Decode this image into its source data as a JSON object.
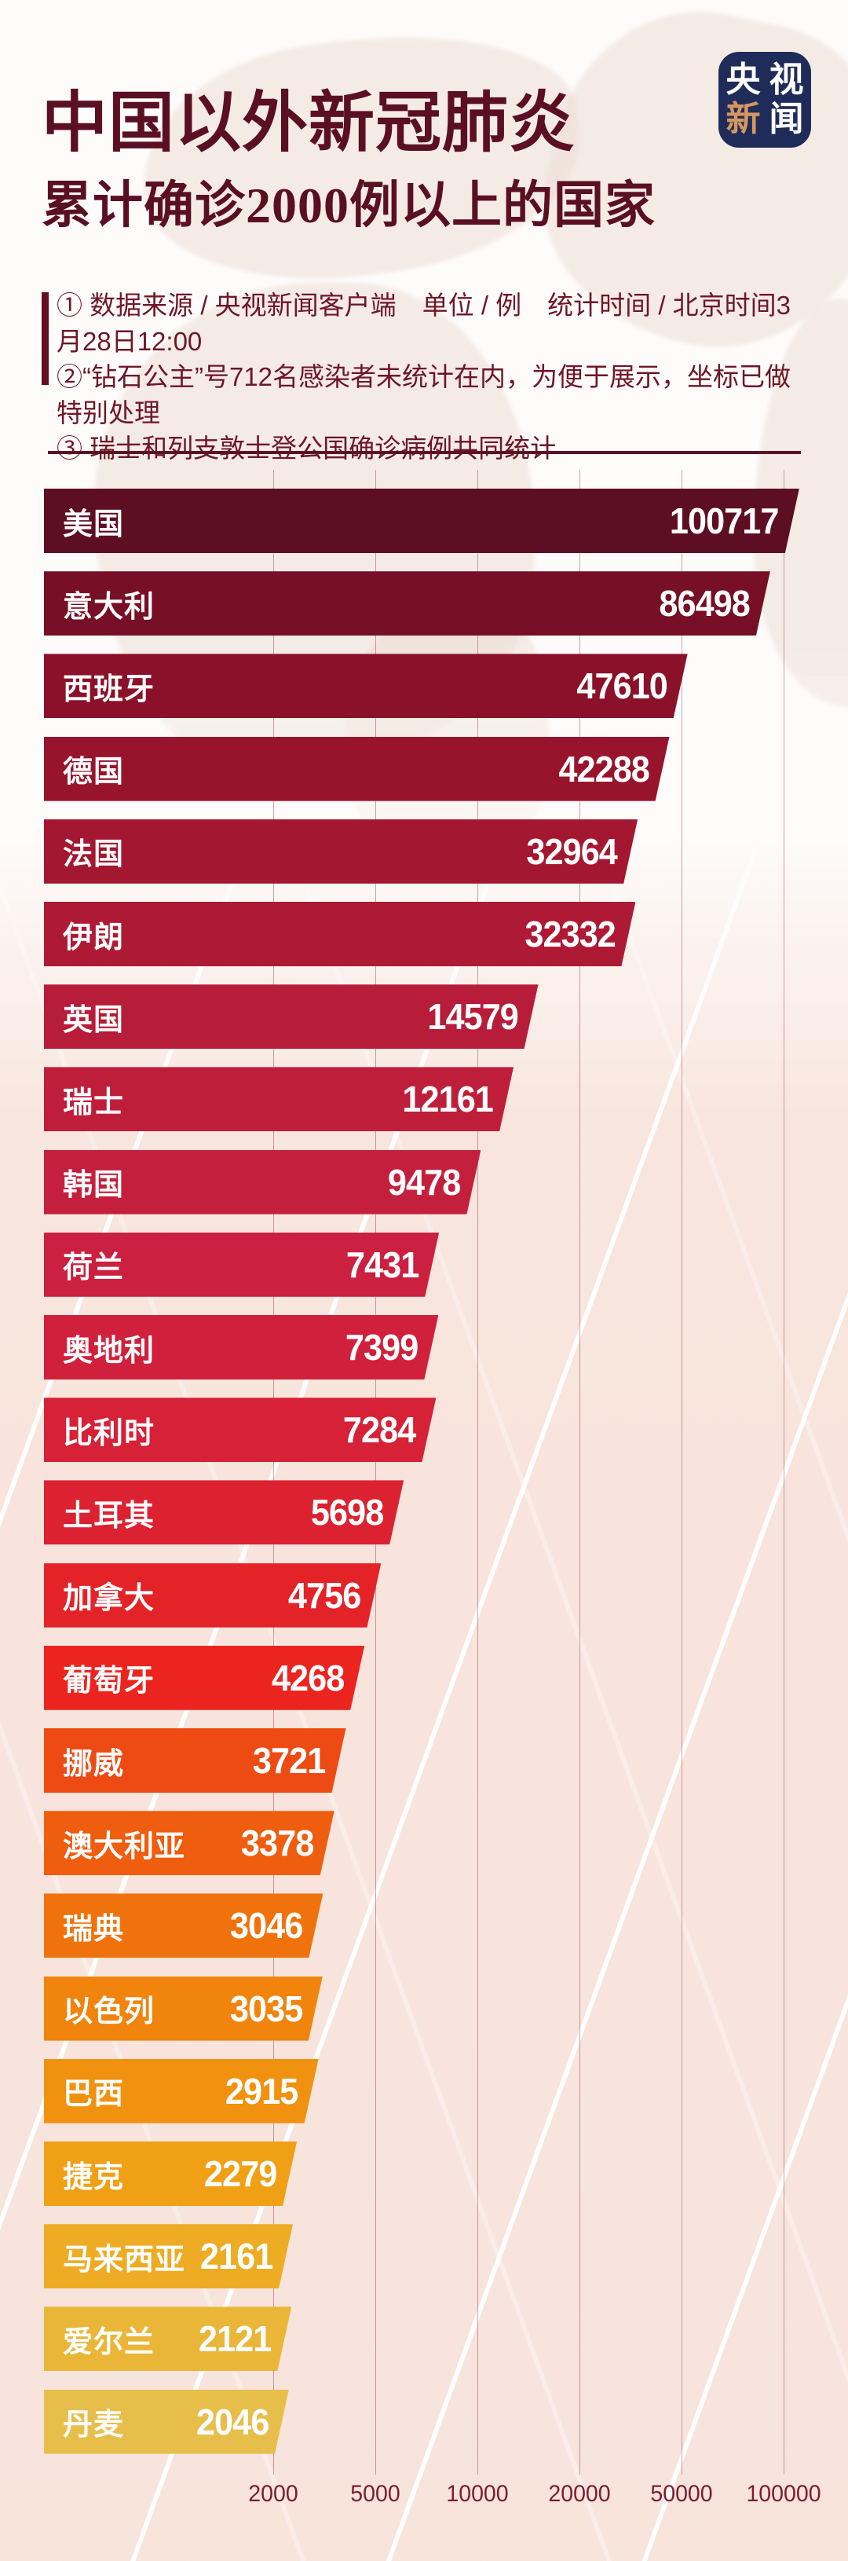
{
  "logo": {
    "chars": [
      "央",
      "视",
      "新",
      "闻"
    ],
    "bg_color": "#1F2C5A",
    "accent_color": "#D6975F"
  },
  "header": {
    "title_line1": "中国以外新冠肺炎",
    "title_line2": "累计确诊2000例以上的国家",
    "title_color": "#5B0F23"
  },
  "notes": [
    "① 数据来源 / 央视新闻客户端　单位 / 例　统计时间 / 北京时间3月28日12:00",
    "②“钻石公主”号712名感染者未统计在内，为便于展示，坐标已做特别处理",
    "③ 瑞士和列支敦士登公国确诊病例共同统计"
  ],
  "chart_data": {
    "type": "bar",
    "orientation": "horizontal",
    "title": "中国以外新冠肺炎累计确诊2000例以上的国家",
    "unit": "例",
    "categories": [
      "美国",
      "意大利",
      "西班牙",
      "德国",
      "法国",
      "伊朗",
      "英国",
      "瑞士",
      "韩国",
      "荷兰",
      "奥地利",
      "比利时",
      "土耳其",
      "加拿大",
      "葡萄牙",
      "挪威",
      "澳大利亚",
      "瑞典",
      "以色列",
      "巴西",
      "捷克",
      "马来西亚",
      "爱尔兰",
      "丹麦"
    ],
    "values": [
      100717,
      86498,
      47610,
      42288,
      32964,
      32332,
      14579,
      12161,
      9478,
      7431,
      7399,
      7284,
      5698,
      4756,
      4268,
      3721,
      3378,
      3046,
      3035,
      2915,
      2279,
      2161,
      2121,
      2046
    ],
    "bar_colors": [
      "#5E0E22",
      "#770F26",
      "#8A1129",
      "#98142C",
      "#A41730",
      "#AE1A34",
      "#B71C38",
      "#BF1E3B",
      "#C51F3E",
      "#CB203F",
      "#D0203C",
      "#D62136",
      "#DC2230",
      "#E32328",
      "#EC2420",
      "#EE4B14",
      "#EF5D0F",
      "#F0720C",
      "#F0840D",
      "#F0920F",
      "#EFA015",
      "#EDAC24",
      "#EAB637",
      "#E8BE4B"
    ],
    "label_color": "#FFFFFF",
    "xticks": [
      2000,
      5000,
      10000,
      20000,
      50000,
      100000
    ],
    "xtick_labels": [
      "2000",
      "5000",
      "10000",
      "20000",
      "50000",
      "100000"
    ],
    "grid": true,
    "legend": false,
    "scale": "custom (ticks evenly spaced, values interpolated piecewise-linearly between ticks)"
  }
}
